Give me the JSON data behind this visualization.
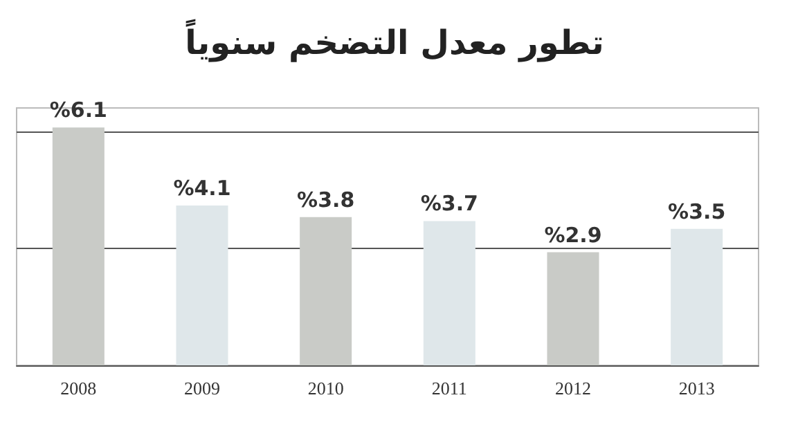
{
  "chart_data": {
    "type": "bar",
    "title": "تطور معدل التضخم سنوياً",
    "categories": [
      "2008",
      "2009",
      "2010",
      "2011",
      "2012",
      "2013"
    ],
    "values": [
      6.1,
      4.1,
      3.8,
      3.7,
      2.9,
      3.5
    ],
    "colors": [
      "#c9cbc7",
      "#dfe7ea",
      "#c9cbc7",
      "#dfe7ea",
      "#c9cbc7",
      "#dfe7ea"
    ],
    "value_labels": [
      "%6.1",
      "%4.1",
      "%3.8",
      "%3.7",
      "%2.9",
      "%3.5"
    ],
    "ylim": [
      0,
      6.6
    ],
    "ref_lines": [
      {
        "axis": "y",
        "value": 3,
        "color": "#555555"
      },
      {
        "axis": "y",
        "value": 6,
        "color": "#555555"
      }
    ],
    "tick_labels": "x"
  }
}
